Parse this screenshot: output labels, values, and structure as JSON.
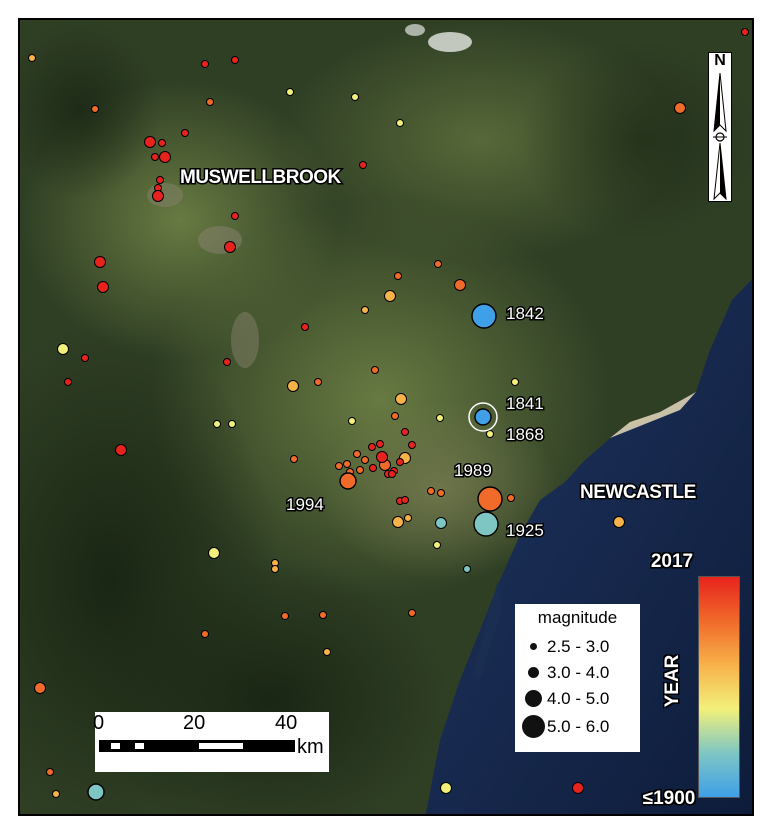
{
  "map": {
    "places": [
      "MUSWELLBROOK",
      "NEWCASTLE"
    ],
    "event_year_labels": [
      "1842",
      "1841",
      "1868",
      "1989",
      "1994",
      "1925"
    ]
  },
  "north_arrow": {
    "letter": "N"
  },
  "scale_bar": {
    "ticks": [
      "0",
      "20",
      "40"
    ],
    "unit": "km"
  },
  "legend": {
    "title": "magnitude",
    "classes": [
      "2.5 - 3.0",
      "3.0 - 4.0",
      "4.0 - 5.0",
      "5.0 - 6.0"
    ]
  },
  "color_scale": {
    "title": "YEAR",
    "max_label": "2017",
    "min_label": "≤1900",
    "colors": [
      "#3fa0e8",
      "#7ec6c4",
      "#f2f07a",
      "#f8b24a",
      "#f06a2a",
      "#e8231e"
    ]
  },
  "colors": {
    "land_dark": "#2b3a22",
    "land_light": "#5a6b3c",
    "sea": "#14254a",
    "sand": "#e8dcb8"
  }
}
